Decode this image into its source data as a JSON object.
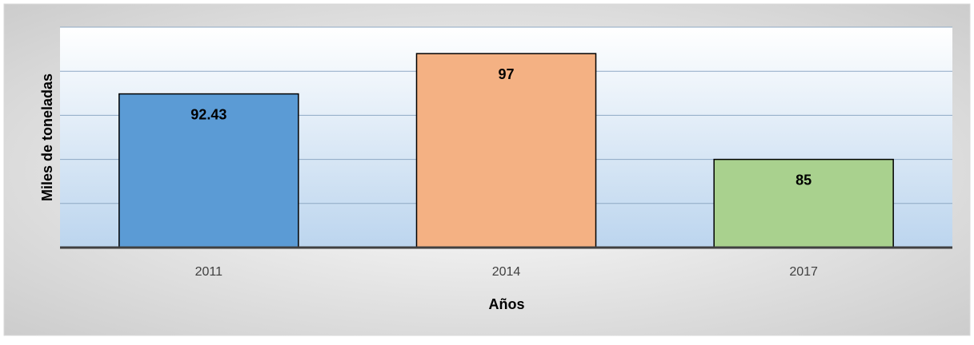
{
  "chart_data": {
    "type": "bar",
    "categories": [
      "2011",
      "2014",
      "2017"
    ],
    "values": [
      92.43,
      97,
      85
    ],
    "colors": [
      "#5b9bd5",
      "#f4b183",
      "#a9d18e"
    ],
    "xlabel": "Años",
    "ylabel": "Miles de toneladas",
    "ylim": [
      75,
      100
    ],
    "yticks": [
      75,
      80,
      85,
      90,
      95,
      100
    ],
    "grid": true
  }
}
